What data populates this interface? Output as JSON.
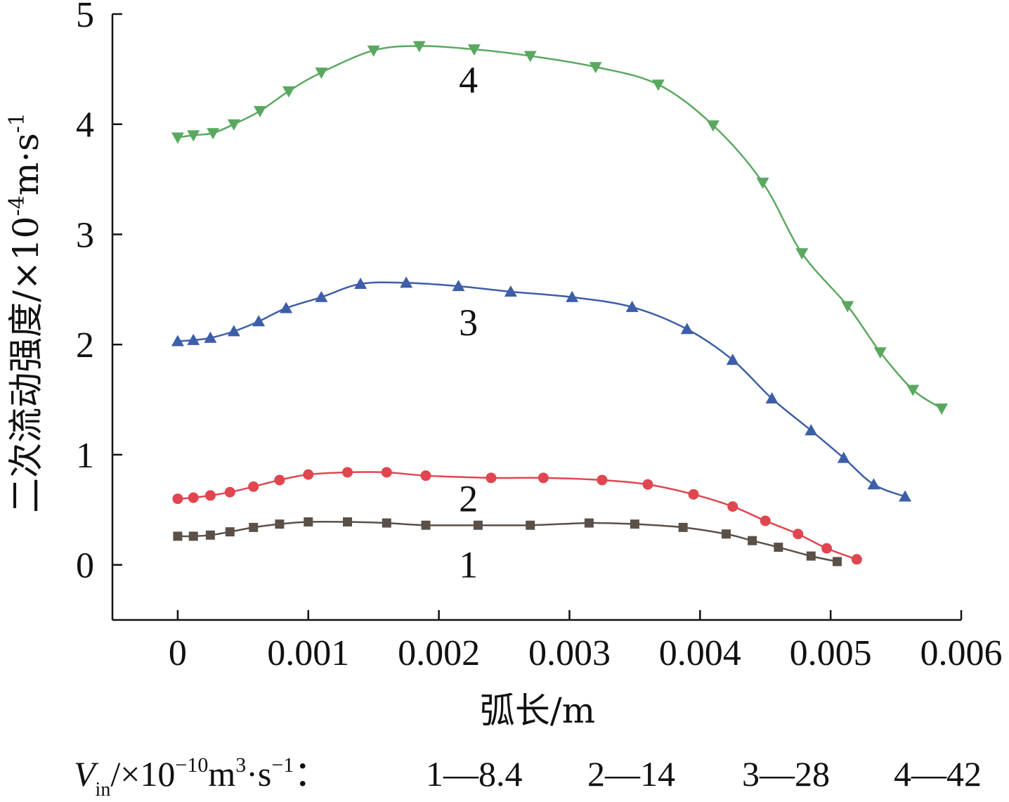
{
  "chart_data": {
    "type": "line",
    "title": "",
    "xlabel": "弧长/m",
    "ylabel_parts": {
      "main": "二次流动强度/×10",
      "exp": "-4",
      "unit": "m·s",
      "unit_exp": "-1"
    },
    "xlim": [
      -0.0005,
      0.006
    ],
    "ylim": [
      -0.5,
      5
    ],
    "xticks": [
      0,
      0.001,
      0.002,
      0.003,
      0.004,
      0.005,
      0.006
    ],
    "xtick_labels": [
      "0",
      "0.001",
      "0.002",
      "0.003",
      "0.004",
      "0.005",
      "0.006"
    ],
    "yticks": [
      0,
      1,
      2,
      3,
      4,
      5
    ],
    "ytick_labels": [
      "0",
      "1",
      "2",
      "3",
      "4",
      "5"
    ],
    "grid": false,
    "series": [
      {
        "name": "1",
        "color": "#5a5048",
        "marker": "square",
        "points": [
          [
            0,
            0.26
          ],
          [
            0.00012,
            0.26
          ],
          [
            0.00025,
            0.27
          ],
          [
            0.0004,
            0.3
          ],
          [
            0.00058,
            0.34
          ],
          [
            0.00078,
            0.37
          ],
          [
            0.001,
            0.39
          ],
          [
            0.0013,
            0.39
          ],
          [
            0.0016,
            0.38
          ],
          [
            0.0019,
            0.36
          ],
          [
            0.0023,
            0.36
          ],
          [
            0.0027,
            0.36
          ],
          [
            0.00315,
            0.38
          ],
          [
            0.0035,
            0.37
          ],
          [
            0.00387,
            0.34
          ],
          [
            0.0042,
            0.28
          ],
          [
            0.0044,
            0.22
          ],
          [
            0.0046,
            0.16
          ],
          [
            0.00485,
            0.08
          ],
          [
            0.00505,
            0.03
          ]
        ]
      },
      {
        "name": "2",
        "color": "#e04650",
        "marker": "circle",
        "points": [
          [
            0,
            0.6
          ],
          [
            0.00012,
            0.61
          ],
          [
            0.00025,
            0.63
          ],
          [
            0.0004,
            0.66
          ],
          [
            0.00058,
            0.71
          ],
          [
            0.00078,
            0.77
          ],
          [
            0.001,
            0.82
          ],
          [
            0.0013,
            0.84
          ],
          [
            0.0016,
            0.84
          ],
          [
            0.0019,
            0.81
          ],
          [
            0.0024,
            0.79
          ],
          [
            0.0028,
            0.79
          ],
          [
            0.00325,
            0.77
          ],
          [
            0.0036,
            0.73
          ],
          [
            0.00395,
            0.64
          ],
          [
            0.00425,
            0.53
          ],
          [
            0.0045,
            0.4
          ],
          [
            0.00475,
            0.28
          ],
          [
            0.00497,
            0.15
          ],
          [
            0.0052,
            0.05
          ]
        ]
      },
      {
        "name": "3",
        "color": "#3d5ea8",
        "marker": "triangle-up",
        "points": [
          [
            0,
            2.03
          ],
          [
            0.00012,
            2.04
          ],
          [
            0.00025,
            2.06
          ],
          [
            0.00043,
            2.12
          ],
          [
            0.00062,
            2.21
          ],
          [
            0.00083,
            2.33
          ],
          [
            0.0011,
            2.43
          ],
          [
            0.0014,
            2.55
          ],
          [
            0.00175,
            2.56
          ],
          [
            0.00215,
            2.53
          ],
          [
            0.00255,
            2.48
          ],
          [
            0.00302,
            2.43
          ],
          [
            0.00348,
            2.34
          ],
          [
            0.0039,
            2.14
          ],
          [
            0.00425,
            1.86
          ],
          [
            0.00455,
            1.51
          ],
          [
            0.00485,
            1.22
          ],
          [
            0.0051,
            0.97
          ],
          [
            0.00533,
            0.73
          ],
          [
            0.00557,
            0.62
          ]
        ]
      },
      {
        "name": "4",
        "color": "#5aa860",
        "marker": "triangle-down",
        "points": [
          [
            0,
            3.88
          ],
          [
            0.00012,
            3.9
          ],
          [
            0.00027,
            3.92
          ],
          [
            0.00043,
            4.0
          ],
          [
            0.00063,
            4.12
          ],
          [
            0.00085,
            4.3
          ],
          [
            0.0011,
            4.47
          ],
          [
            0.0015,
            4.67
          ],
          [
            0.00185,
            4.71
          ],
          [
            0.00227,
            4.68
          ],
          [
            0.0027,
            4.62
          ],
          [
            0.0032,
            4.52
          ],
          [
            0.00368,
            4.36
          ],
          [
            0.0041,
            3.99
          ],
          [
            0.00448,
            3.47
          ],
          [
            0.00478,
            2.83
          ],
          [
            0.00513,
            2.35
          ],
          [
            0.00538,
            1.93
          ],
          [
            0.00563,
            1.59
          ],
          [
            0.00585,
            1.42
          ]
        ]
      }
    ],
    "curve_labels": [
      {
        "text": "1",
        "x": 0.00228,
        "y": 0.0
      },
      {
        "text": "2",
        "x": 0.00228,
        "y": 0.6
      },
      {
        "text": "3",
        "x": 0.00228,
        "y": 2.2
      },
      {
        "text": "4",
        "x": 0.00228,
        "y": 4.4
      }
    ],
    "footer": {
      "var": "V",
      "var_sub": "in",
      "unit_prefix": "/×10",
      "unit_exp": "−10",
      "unit_main": "m",
      "unit_main_exp": "3",
      "unit_mid": "·s",
      "unit_mid_exp": "−1",
      "colon": "：",
      "entries": [
        "1—8.4",
        "2—14",
        "3—28",
        "4—42"
      ]
    }
  }
}
